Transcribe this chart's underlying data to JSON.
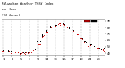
{
  "title": "Milwaukee Weather THSW Index  per Hour  (24 Hours)",
  "hours": [
    1,
    2,
    3,
    4,
    5,
    6,
    7,
    8,
    9,
    10,
    11,
    12,
    13,
    14,
    15,
    16,
    17,
    18,
    19,
    20,
    21,
    22,
    23,
    24
  ],
  "thsw_values": [
    44,
    43,
    42,
    41,
    40,
    40,
    41,
    46,
    56,
    66,
    73,
    79,
    83,
    86,
    84,
    80,
    75,
    69,
    62,
    57,
    53,
    49,
    47,
    45
  ],
  "thsw_values2": [
    45,
    44,
    43,
    42,
    41,
    41,
    42,
    48,
    58,
    68,
    75,
    81,
    84,
    87,
    85,
    81,
    76,
    70,
    63,
    58,
    54,
    50,
    48,
    46
  ],
  "dot_color": "#cc0000",
  "dot_color2": "#000000",
  "bg_color": "#ffffff",
  "grid_color": "#999999",
  "ylabel_values": [
    40,
    50,
    60,
    70,
    80,
    90
  ],
  "ylim": [
    36,
    93
  ],
  "xlim": [
    0.5,
    24.5
  ],
  "xlabel_ticks": [
    1,
    3,
    5,
    7,
    9,
    11,
    13,
    15,
    17,
    19,
    21,
    23
  ],
  "xlabel_labels": [
    "1",
    "3",
    "5",
    "7",
    "9",
    "11",
    "13",
    "15",
    "17",
    "19",
    "21",
    "23"
  ],
  "vgrid_positions": [
    1,
    3,
    5,
    7,
    9,
    11,
    13,
    15,
    17,
    19,
    21,
    23
  ]
}
